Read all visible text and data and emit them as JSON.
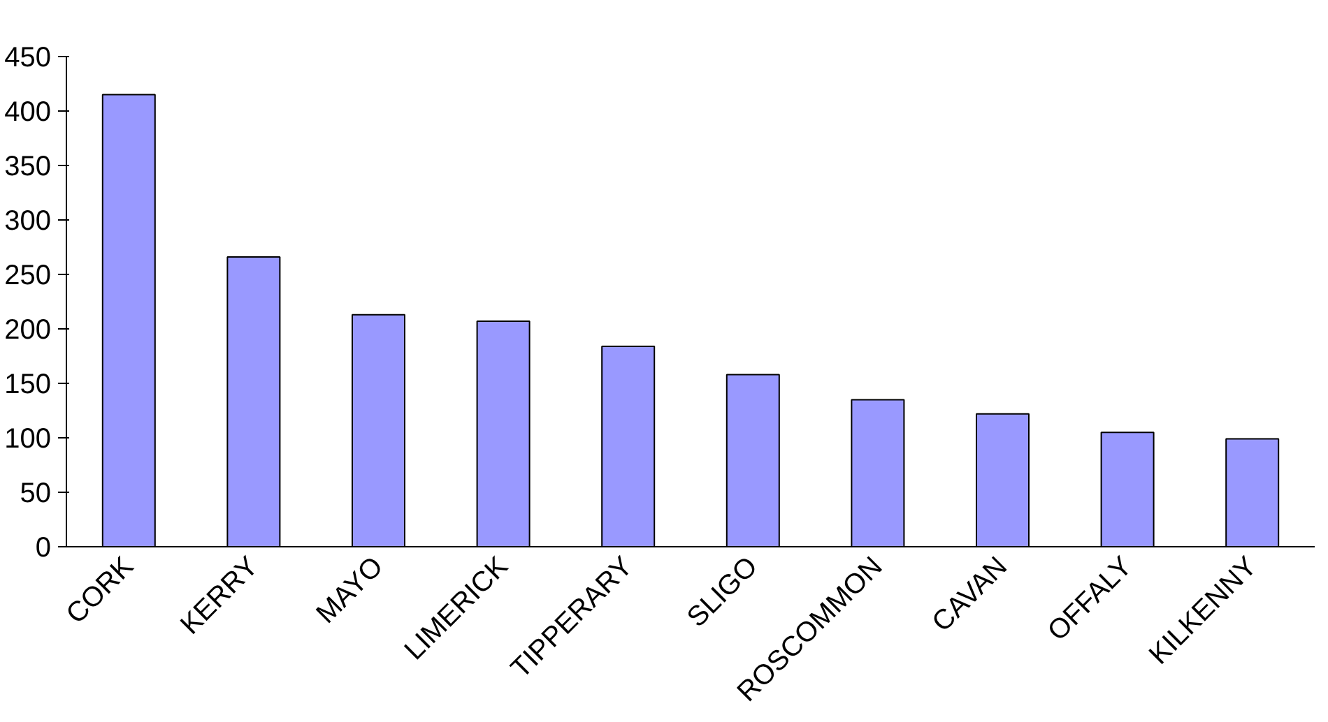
{
  "chart_data": {
    "type": "bar",
    "categories": [
      "CORK",
      "KERRY",
      "MAYO",
      "LIMERICK",
      "TIPPERARY",
      "SLIGO",
      "ROSCOMMON",
      "CAVAN",
      "OFFALY",
      "KILKENNY"
    ],
    "values": [
      415,
      266,
      213,
      207,
      184,
      158,
      135,
      122,
      105,
      99
    ],
    "color": "#9999ff",
    "ylim": [
      0,
      450
    ],
    "yticks": [
      0,
      50,
      100,
      150,
      200,
      250,
      300,
      350,
      400,
      450
    ],
    "grid": false
  }
}
